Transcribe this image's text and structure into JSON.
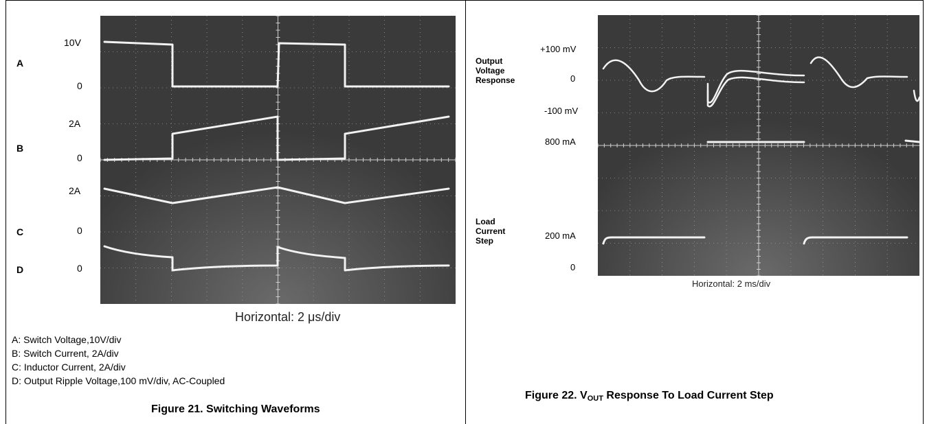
{
  "fig21": {
    "channel_letters": [
      "A",
      "B",
      "C",
      "D"
    ],
    "level_labels": [
      "10V",
      "0",
      "2A",
      "0",
      "2A",
      "0",
      "0"
    ],
    "horizontal": "Horizontal: 2 μs/div",
    "legend": [
      "A: Switch Voltage,10V/div",
      "B: Switch Current, 2A/div",
      "C: Inductor Current, 2A/div",
      "D: Output Ripple Voltage,100 mV/div, AC-Coupled"
    ],
    "caption": "Figure 21. Switching Waveforms"
  },
  "fig22": {
    "side_labels": [
      "Output Voltage Response",
      "Load Current Step"
    ],
    "level_labels": [
      "+100 mV",
      "0",
      "-100 mV",
      "800 mA",
      "200 mA",
      "0"
    ],
    "horizontal": "Horizontal: 2 ms/div",
    "caption_prefix": "Figure 22. V",
    "caption_sub": "OUT",
    "caption_suffix": " Response To Load Current Step"
  },
  "colors": {
    "screen": "#3a3a3a",
    "grid": "#9a9a9a",
    "trace": "#f2f2f2"
  }
}
